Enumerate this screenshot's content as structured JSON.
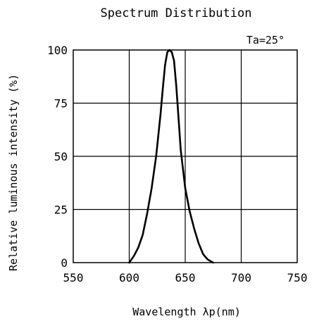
{
  "chart_data": {
    "type": "line",
    "title": "Spectrum Distribution",
    "annotation": "Ta=25°",
    "xlabel": "Wavelength λp(nm)",
    "ylabel": "Relative luminous intensity (%)",
    "xlim": [
      550,
      750
    ],
    "ylim": [
      0,
      100
    ],
    "x_ticks": [
      550,
      600,
      650,
      700,
      750
    ],
    "y_ticks": [
      0,
      25,
      50,
      75,
      100
    ],
    "grid": true,
    "colors": {
      "line": "#000000",
      "grid": "#000000"
    },
    "series": [
      {
        "x": [
          600,
          604,
          608,
          612,
          616,
          620,
          624,
          628,
          630,
          632,
          634,
          636,
          638,
          640,
          642,
          644,
          646,
          650,
          654,
          658,
          662,
          666,
          670,
          674,
          675
        ],
        "y": [
          0,
          3,
          7,
          13,
          23,
          35,
          50,
          70,
          82,
          93,
          99,
          100,
          99,
          95,
          83,
          68,
          53,
          35,
          24,
          16,
          9,
          4,
          1.5,
          0.3,
          0
        ]
      }
    ]
  }
}
